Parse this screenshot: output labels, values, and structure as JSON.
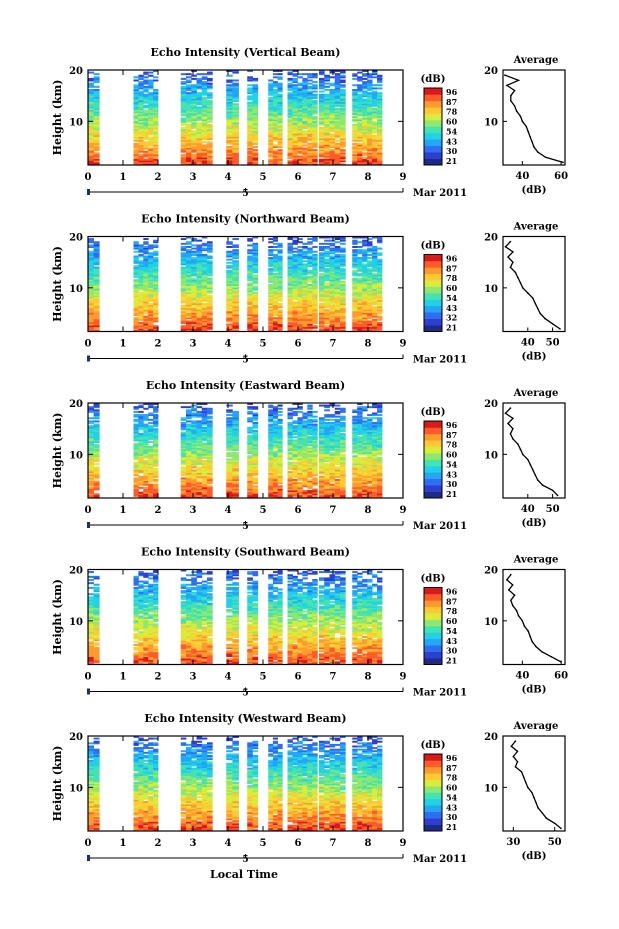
{
  "colors": {
    "colormap": [
      "#1f2a86",
      "#2d3fd0",
      "#2f6ef0",
      "#22a6f5",
      "#21d2e6",
      "#45e2b2",
      "#8ee86f",
      "#d9ec3c",
      "#ffc933",
      "#ff9a2e",
      "#ff5b2a",
      "#d91a1a"
    ],
    "axis": "#000000",
    "marker": "#1f2a86"
  },
  "chart_data": [
    {
      "type": "heatmap",
      "title": "Echo Intensity (Vertical Beam)",
      "ylabel": "Height (km)",
      "x_ticks": [
        "0",
        "1",
        "2",
        "3",
        "4",
        "5",
        "6",
        "7",
        "8",
        "9"
      ],
      "y_ticks": [
        "20",
        "10"
      ],
      "xlim": [
        0,
        9
      ],
      "ylim": [
        1.5,
        20
      ],
      "date_label": "Mar 2011",
      "date_tick": "5",
      "data_blocks_hours": [
        [
          0,
          0.32
        ],
        [
          1.3,
          2.0
        ],
        [
          2.65,
          3.55
        ],
        [
          3.95,
          4.3
        ],
        [
          4.55,
          4.85
        ],
        [
          5.15,
          5.55
        ],
        [
          5.7,
          6.55
        ],
        [
          6.6,
          7.35
        ],
        [
          7.55,
          8.4
        ]
      ],
      "colorbar": {
        "unit": "(dB)",
        "ticks": [
          "96",
          "87",
          "78",
          "60",
          "54",
          "43",
          "30",
          "21"
        ]
      },
      "profile": {
        "title": "Average",
        "xlabel": "(dB)",
        "x_ticks": [
          "40",
          "60"
        ],
        "xlim": [
          30,
          62
        ],
        "y_ticks": [
          "20",
          "10"
        ],
        "heights_km": [
          2,
          3,
          4,
          5,
          6,
          7,
          8,
          9,
          10,
          11,
          12,
          13,
          14,
          15,
          16,
          17,
          18,
          19
        ],
        "values_db": [
          61,
          52,
          48,
          46,
          45,
          44,
          43,
          42,
          40,
          39,
          37,
          36,
          34,
          34,
          36,
          32,
          38,
          31
        ]
      }
    },
    {
      "type": "heatmap",
      "title": "Echo Intensity (Northward Beam)",
      "ylabel": "Height (km)",
      "x_ticks": [
        "0",
        "1",
        "2",
        "3",
        "4",
        "5",
        "6",
        "7",
        "8",
        "9"
      ],
      "y_ticks": [
        "20",
        "10"
      ],
      "xlim": [
        0,
        9
      ],
      "ylim": [
        1.5,
        20
      ],
      "date_label": "Mar 2011",
      "date_tick": "5",
      "data_blocks_hours": [
        [
          0,
          0.32
        ],
        [
          1.3,
          2.0
        ],
        [
          2.65,
          3.55
        ],
        [
          3.95,
          4.3
        ],
        [
          4.55,
          4.85
        ],
        [
          5.15,
          5.55
        ],
        [
          5.7,
          6.55
        ],
        [
          6.6,
          7.35
        ],
        [
          7.55,
          8.4
        ]
      ],
      "colorbar": {
        "unit": "(dB)",
        "ticks": [
          "96",
          "87",
          "78",
          "60",
          "54",
          "43",
          "32",
          "21"
        ]
      },
      "profile": {
        "title": "Average",
        "xlabel": "(dB)",
        "x_ticks": [
          "40",
          "50"
        ],
        "xlim": [
          30,
          55
        ],
        "y_ticks": [
          "20",
          "10"
        ],
        "heights_km": [
          2,
          3,
          4,
          5,
          6,
          7,
          8,
          9,
          10,
          11,
          12,
          13,
          14,
          15,
          16,
          17,
          18,
          19
        ],
        "values_db": [
          53,
          50,
          47,
          45,
          44,
          43,
          42,
          40,
          38,
          37,
          36,
          35,
          33,
          34,
          32,
          34,
          31,
          33
        ]
      }
    },
    {
      "type": "heatmap",
      "title": "Echo Intensity (Eastward Beam)",
      "ylabel": "Height (km)",
      "x_ticks": [
        "0",
        "1",
        "2",
        "3",
        "4",
        "5",
        "6",
        "7",
        "8",
        "9"
      ],
      "y_ticks": [
        "20",
        "10"
      ],
      "xlim": [
        0,
        9
      ],
      "ylim": [
        1.5,
        20
      ],
      "date_label": "Mar 2011",
      "date_tick": "5",
      "data_blocks_hours": [
        [
          0,
          0.32
        ],
        [
          1.3,
          2.0
        ],
        [
          2.65,
          3.55
        ],
        [
          3.95,
          4.3
        ],
        [
          4.55,
          4.85
        ],
        [
          5.15,
          5.55
        ],
        [
          5.7,
          6.55
        ],
        [
          6.6,
          7.35
        ],
        [
          7.55,
          8.4
        ]
      ],
      "colorbar": {
        "unit": "(dB)",
        "ticks": [
          "96",
          "87",
          "78",
          "60",
          "54",
          "43",
          "30",
          "21"
        ]
      },
      "profile": {
        "title": "Average",
        "xlabel": "(dB)",
        "x_ticks": [
          "40",
          "50"
        ],
        "xlim": [
          30,
          55
        ],
        "y_ticks": [
          "20",
          "10"
        ],
        "heights_km": [
          2,
          3,
          4,
          5,
          6,
          7,
          8,
          9,
          10,
          11,
          12,
          13,
          14,
          15,
          16,
          17,
          18,
          19
        ],
        "values_db": [
          52,
          50,
          46,
          44,
          43,
          42,
          41,
          40,
          38,
          37,
          36,
          34,
          33,
          34,
          32,
          34,
          31,
          33
        ]
      }
    },
    {
      "type": "heatmap",
      "title": "Echo Intensity (Southward Beam)",
      "ylabel": "Height (km)",
      "x_ticks": [
        "0",
        "1",
        "2",
        "3",
        "4",
        "5",
        "6",
        "7",
        "8",
        "9"
      ],
      "y_ticks": [
        "20",
        "10"
      ],
      "xlim": [
        0,
        9
      ],
      "ylim": [
        1.5,
        20
      ],
      "date_label": "Mar 2011",
      "date_tick": "5",
      "data_blocks_hours": [
        [
          0,
          0.32
        ],
        [
          1.3,
          2.0
        ],
        [
          2.65,
          3.55
        ],
        [
          3.95,
          4.3
        ],
        [
          4.55,
          4.85
        ],
        [
          5.15,
          5.55
        ],
        [
          5.7,
          6.55
        ],
        [
          6.6,
          7.35
        ],
        [
          7.55,
          8.4
        ]
      ],
      "colorbar": {
        "unit": "(dB)",
        "ticks": [
          "96",
          "87",
          "78",
          "60",
          "54",
          "43",
          "30",
          "21"
        ]
      },
      "profile": {
        "title": "Average",
        "xlabel": "(dB)",
        "x_ticks": [
          "40",
          "60"
        ],
        "xlim": [
          30,
          62
        ],
        "y_ticks": [
          "20",
          "10"
        ],
        "heights_km": [
          2,
          3,
          4,
          5,
          6,
          7,
          8,
          9,
          10,
          11,
          12,
          13,
          14,
          15,
          16,
          17,
          18,
          19
        ],
        "values_db": [
          60,
          55,
          50,
          47,
          45,
          44,
          43,
          41,
          40,
          38,
          37,
          35,
          34,
          36,
          33,
          35,
          32,
          34
        ]
      }
    },
    {
      "type": "heatmap",
      "title": "Echo Intensity (Westward Beam)",
      "ylabel": "Height (km)",
      "x_ticks": [
        "0",
        "1",
        "2",
        "3",
        "4",
        "5",
        "6",
        "7",
        "8",
        "9"
      ],
      "y_ticks": [
        "20",
        "10"
      ],
      "xlim": [
        0,
        9
      ],
      "ylim": [
        1.5,
        20
      ],
      "date_label": "Mar 2011",
      "date_tick": "5",
      "xlabel": "Local Time",
      "data_blocks_hours": [
        [
          0,
          0.32
        ],
        [
          1.3,
          2.0
        ],
        [
          2.65,
          3.55
        ],
        [
          3.95,
          4.3
        ],
        [
          4.55,
          4.85
        ],
        [
          5.15,
          5.55
        ],
        [
          5.7,
          6.55
        ],
        [
          6.6,
          7.35
        ],
        [
          7.55,
          8.4
        ]
      ],
      "colorbar": {
        "unit": "(dB)",
        "ticks": [
          "96",
          "87",
          "78",
          "60",
          "54",
          "43",
          "30",
          "21"
        ]
      },
      "profile": {
        "title": "Average",
        "xlabel": "(dB)",
        "x_ticks": [
          "30",
          "50"
        ],
        "xlim": [
          25,
          55
        ],
        "y_ticks": [
          "20",
          "10"
        ],
        "heights_km": [
          2,
          3,
          4,
          5,
          6,
          7,
          8,
          9,
          10,
          11,
          12,
          13,
          14,
          15,
          16,
          17,
          18,
          19
        ],
        "values_db": [
          53,
          50,
          46,
          44,
          42,
          41,
          40,
          39,
          37,
          36,
          35,
          34,
          31,
          32,
          30,
          32,
          29,
          31
        ]
      }
    }
  ]
}
